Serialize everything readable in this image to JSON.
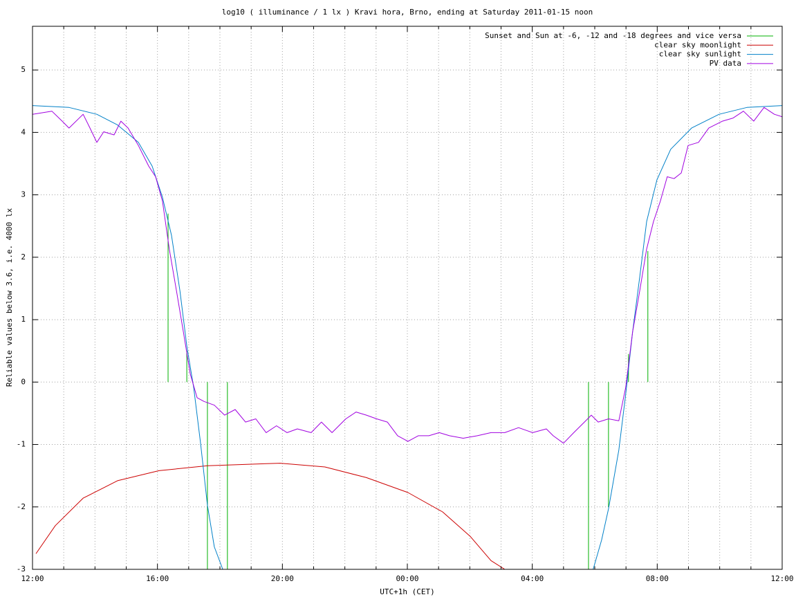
{
  "chart_data": {
    "type": "line",
    "title": "log10 ( illuminance / 1 lx ) Kravi hora, Brno, ending at Saturday 2011-01-15 noon",
    "xlabel": "UTC+1h (CET)",
    "ylabel": "Reliable values below 3.6, i.e. 4000 lx",
    "xlim": [
      0,
      24
    ],
    "ylim": [
      -3,
      5.7
    ],
    "xticks": [
      {
        "value": 0,
        "label": "12:00"
      },
      {
        "value": 4,
        "label": "16:00"
      },
      {
        "value": 8,
        "label": "20:00"
      },
      {
        "value": 12,
        "label": "00:00"
      },
      {
        "value": 16,
        "label": "04:00"
      },
      {
        "value": 20,
        "label": "08:00"
      },
      {
        "value": 24,
        "label": "12:00"
      }
    ],
    "xminorticks": [
      1,
      2,
      3,
      5,
      6,
      7,
      9,
      10,
      11,
      13,
      14,
      15,
      17,
      18,
      19,
      21,
      22,
      23
    ],
    "yticks": [
      -3,
      -2,
      -1,
      0,
      1,
      2,
      3,
      4,
      5
    ],
    "grid": true,
    "legend": "top-right",
    "series": [
      {
        "name": "Sunset and Sun at -6, -12 and -18 degrees and vice versa",
        "color": "#00b000",
        "style": "impulses",
        "x": [
          4.34,
          4.94,
          5.6,
          6.24,
          17.8,
          18.44,
          19.08,
          19.7
        ],
        "values": [
          2.7,
          0.5,
          -3,
          -3,
          -3,
          -2,
          0.45,
          2.1
        ]
      },
      {
        "name": "clear sky moonlight",
        "color": "#cc0000",
        "style": "lines",
        "x": [
          0.11,
          0.73,
          1.62,
          2.72,
          4.05,
          5.6,
          7.93,
          9.36,
          10.69,
          12.02,
          13.13,
          14.01,
          14.68,
          15.12
        ],
        "values": [
          -2.75,
          -2.3,
          -1.86,
          -1.58,
          -1.42,
          -1.34,
          -1.3,
          -1.36,
          -1.53,
          -1.77,
          -2.08,
          -2.47,
          -2.86,
          -3
        ]
      },
      {
        "name": "clear sky sunlight",
        "color": "#0080c8",
        "style": "lines",
        "x": [
          0,
          1.17,
          2.06,
          2.72,
          3.39,
          3.83,
          4.16,
          4.45,
          4.72,
          4.94,
          5.16,
          5.38,
          5.6,
          5.82,
          6.09,
          12,
          17.95,
          18.22,
          18.44,
          18.77,
          18.99,
          19.21,
          19.44,
          19.66,
          19.99,
          20.43,
          21.1,
          21.98,
          22.87,
          24
        ],
        "values": [
          4.43,
          4.4,
          4.29,
          4.12,
          3.84,
          3.46,
          2.96,
          2.35,
          1.46,
          0.58,
          -0.09,
          -0.98,
          -1.97,
          -2.64,
          -3,
          null,
          -3,
          -2.53,
          -2.03,
          -1.09,
          -0.2,
          0.8,
          1.68,
          2.57,
          3.24,
          3.73,
          4.07,
          4.29,
          4.4,
          4.43
        ]
      },
      {
        "name": "PV data",
        "color": "#a000e0",
        "style": "lines",
        "x": [
          0,
          0.62,
          0.95,
          1.17,
          1.62,
          1.84,
          2.06,
          2.28,
          2.61,
          2.83,
          3.06,
          3.39,
          3.72,
          3.94,
          4.16,
          4.38,
          4.61,
          4.83,
          5.05,
          5.27,
          5.49,
          5.82,
          6.15,
          6.49,
          6.82,
          7.15,
          7.48,
          7.81,
          8.15,
          8.48,
          8.92,
          9.25,
          9.59,
          10.03,
          10.36,
          10.69,
          11.02,
          11.36,
          11.69,
          12.02,
          12.35,
          12.69,
          13.02,
          13.35,
          13.79,
          14.24,
          14.68,
          15.12,
          15.56,
          16.01,
          16.45,
          16.67,
          17.0,
          17.33,
          17.67,
          17.89,
          18.11,
          18.44,
          18.77,
          18.99,
          19.21,
          19.44,
          19.66,
          19.88,
          20.1,
          20.32,
          20.54,
          20.77,
          20.99,
          21.32,
          21.65,
          22.09,
          22.43,
          22.76,
          23.09,
          23.42,
          23.75,
          24
        ],
        "values": [
          4.29,
          4.34,
          4.18,
          4.07,
          4.29,
          4.07,
          3.84,
          4.01,
          3.96,
          4.18,
          4.07,
          3.79,
          3.46,
          3.29,
          2.9,
          2.13,
          1.46,
          0.8,
          0.13,
          -0.25,
          -0.31,
          -0.37,
          -0.53,
          -0.44,
          -0.64,
          -0.59,
          -0.81,
          -0.7,
          -0.81,
          -0.75,
          -0.81,
          -0.64,
          -0.81,
          -0.59,
          -0.48,
          -0.53,
          -0.59,
          -0.64,
          -0.86,
          -0.95,
          -0.86,
          -0.86,
          -0.81,
          -0.86,
          -0.9,
          -0.86,
          -0.81,
          -0.81,
          -0.73,
          -0.81,
          -0.75,
          -0.86,
          -0.98,
          -0.81,
          -0.64,
          -0.53,
          -0.64,
          -0.59,
          -0.62,
          -0.09,
          0.8,
          1.46,
          2.13,
          2.57,
          2.9,
          3.29,
          3.26,
          3.35,
          3.79,
          3.84,
          4.07,
          4.18,
          4.23,
          4.34,
          4.18,
          4.4,
          4.29,
          4.25
        ]
      }
    ]
  }
}
